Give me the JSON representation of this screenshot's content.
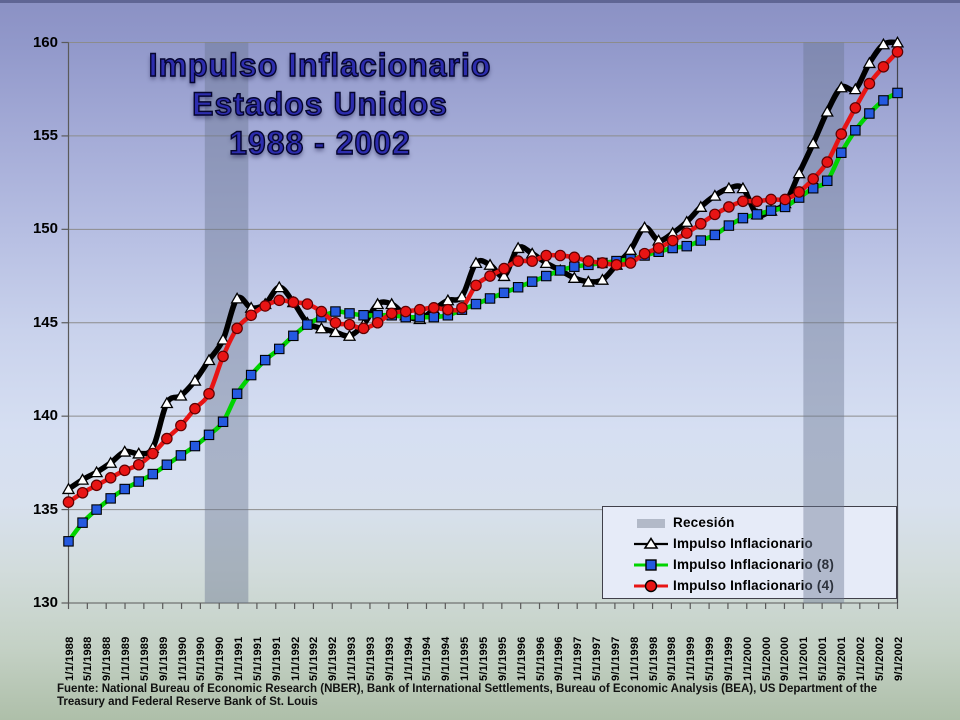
{
  "slide": {
    "title_lines": [
      "Impulso Inflacionario",
      "Estados Unidos",
      "1988 - 2002"
    ],
    "footer_lines": [
      "Fuente: National Bureau of Economic Research (NBER), Bank of International Settlements, Bureau of Economic Analysis (BEA), US Department of the",
      "Treasury and Federal Reserve Bank of St. Louis"
    ]
  },
  "legend": {
    "items": [
      {
        "label": "Recesión",
        "swatch": "gray-band",
        "color": "#b2b9c8"
      },
      {
        "label": "Impulso Inflacionario",
        "swatch": "black-line-open-triangle",
        "color": "#000000"
      },
      {
        "label": "Impulso Inflacionario  (8)",
        "swatch": "green-line-blue-square",
        "color": "#00d400"
      },
      {
        "label": "Impulso Inflacionario  (4)",
        "swatch": "red-line-red-circle",
        "color": "#e81414"
      }
    ]
  },
  "chart_data": {
    "type": "line",
    "title": "Impulso Inflacionario Estados Unidos 1988 - 2002",
    "ylim": [
      130,
      160
    ],
    "y_ticks": [
      130,
      135,
      140,
      145,
      150,
      155,
      160
    ],
    "grid": "horizontal",
    "legend_position": "bottom-right",
    "x_tick_labels": [
      "1/1/1988",
      "5/1/1988",
      "9/1/1988",
      "1/1/1989",
      "5/1/1989",
      "9/1/1989",
      "1/1/1990",
      "5/1/1990",
      "9/1/1990",
      "1/1/1991",
      "5/1/1991",
      "9/1/1991",
      "1/1/1992",
      "5/1/1992",
      "9/1/1992",
      "1/1/1993",
      "5/1/1993",
      "9/1/1993",
      "1/1/1994",
      "5/1/1994",
      "9/1/1994",
      "1/1/1995",
      "5/1/1995",
      "9/1/1995",
      "1/1/1996",
      "5/1/1996",
      "9/1/1996",
      "1/1/1997",
      "5/1/1997",
      "9/1/1997",
      "1/1/1998",
      "5/1/1998",
      "9/1/1998",
      "1/1/1999",
      "5/1/1999",
      "9/1/1999",
      "1/1/2000",
      "5/1/2000",
      "9/1/2000",
      "1/1/2001",
      "5/1/2001",
      "9/1/2001",
      "1/1/2002",
      "5/1/2002",
      "9/1/2002"
    ],
    "x_quarterly_dates": [
      "1/1988",
      "4/1988",
      "7/1988",
      "10/1988",
      "1/1989",
      "4/1989",
      "7/1989",
      "10/1989",
      "1/1990",
      "4/1990",
      "7/1990",
      "10/1990",
      "1/1991",
      "4/1991",
      "7/1991",
      "10/1991",
      "1/1992",
      "4/1992",
      "7/1992",
      "10/1992",
      "1/1993",
      "4/1993",
      "7/1993",
      "10/1993",
      "1/1994",
      "4/1994",
      "7/1994",
      "10/1994",
      "1/1995",
      "4/1995",
      "7/1995",
      "10/1995",
      "1/1996",
      "4/1996",
      "7/1996",
      "10/1996",
      "1/1997",
      "4/1997",
      "7/1997",
      "10/1997",
      "1/1998",
      "4/1998",
      "7/1998",
      "10/1998",
      "1/1999",
      "4/1999",
      "7/1999",
      "10/1999",
      "1/2000",
      "4/2000",
      "7/2000",
      "10/2000",
      "1/2001",
      "4/2001",
      "7/2001",
      "10/2001",
      "1/2002",
      "4/2002",
      "7/2002",
      "10/2002"
    ],
    "series": [
      {
        "name": "Impulso Inflacionario",
        "color": "#000000",
        "marker": "open-triangle",
        "marker_fill": "#ffffff",
        "values": [
          136.1,
          136.6,
          137.0,
          137.5,
          138.1,
          138.0,
          138.3,
          140.7,
          141.1,
          141.9,
          143.0,
          144.1,
          146.3,
          145.8,
          146.0,
          146.9,
          146.1,
          145.0,
          144.7,
          144.5,
          144.3,
          144.9,
          146.0,
          146.0,
          145.4,
          145.2,
          145.7,
          146.2,
          146.4,
          148.2,
          148.1,
          147.5,
          149.0,
          148.7,
          148.2,
          147.8,
          147.4,
          147.2,
          147.3,
          148.1,
          148.9,
          150.1,
          149.4,
          149.8,
          150.4,
          151.2,
          151.8,
          152.2,
          152.2,
          150.8,
          151.0,
          151.4,
          153.0,
          154.6,
          156.3,
          157.6,
          157.5,
          158.9,
          159.9,
          160.0
        ]
      },
      {
        "name": "Impulso Inflacionario (8)",
        "color": "#00d400",
        "marker": "square",
        "marker_fill": "#2459e0",
        "values": [
          133.3,
          134.3,
          135.0,
          135.6,
          136.1,
          136.5,
          136.9,
          137.4,
          137.9,
          138.4,
          139.0,
          139.7,
          141.2,
          142.2,
          143.0,
          143.6,
          144.3,
          144.9,
          145.3,
          145.6,
          145.5,
          145.4,
          145.4,
          145.4,
          145.3,
          145.3,
          145.3,
          145.4,
          145.7,
          146.0,
          146.3,
          146.6,
          146.9,
          147.2,
          147.5,
          147.8,
          148.0,
          148.1,
          148.2,
          148.3,
          148.4,
          148.6,
          148.8,
          149.0,
          149.1,
          149.4,
          149.7,
          150.2,
          150.6,
          150.8,
          151.0,
          151.2,
          151.7,
          152.2,
          152.6,
          154.1,
          155.3,
          156.2,
          156.9,
          157.3
        ]
      },
      {
        "name": "Impulso Inflacionario (4)",
        "color": "#e81414",
        "marker": "circle",
        "marker_fill": "#e81414",
        "values": [
          135.4,
          135.9,
          136.3,
          136.7,
          137.1,
          137.4,
          138.0,
          138.8,
          139.5,
          140.4,
          141.2,
          143.2,
          144.7,
          145.4,
          145.9,
          146.2,
          146.1,
          146.0,
          145.6,
          145.0,
          144.9,
          144.7,
          145.0,
          145.5,
          145.6,
          145.7,
          145.8,
          145.7,
          145.8,
          147.0,
          147.5,
          147.9,
          148.3,
          148.3,
          148.6,
          148.6,
          148.5,
          148.3,
          148.2,
          148.1,
          148.2,
          148.7,
          149.0,
          149.4,
          149.8,
          150.3,
          150.8,
          151.2,
          151.5,
          151.5,
          151.6,
          151.6,
          152.0,
          152.7,
          153.6,
          155.1,
          156.5,
          157.8,
          158.7,
          159.5
        ]
      }
    ],
    "recession_bands": [
      {
        "start_index": 9.7,
        "end_index": 12.8,
        "approx_dates": "7/1990 - 4/1991"
      },
      {
        "start_index": 52.3,
        "end_index": 55.2,
        "approx_dates": "3/2001 - 11/2001"
      }
    ],
    "band_color": "#68748e",
    "band_opacity": 0.42
  }
}
